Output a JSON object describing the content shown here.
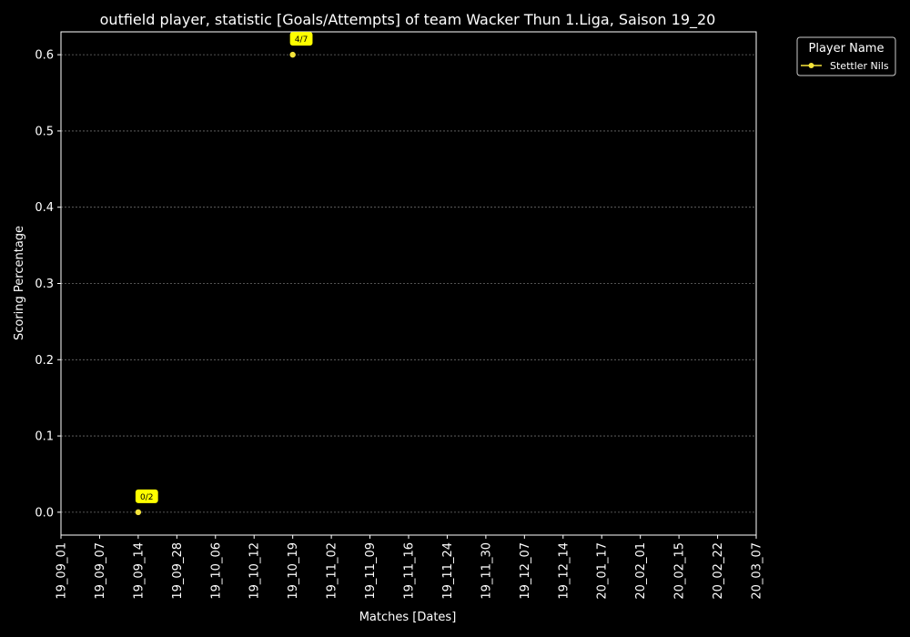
{
  "chart_data": {
    "type": "line",
    "title": "outfield player, statistic [Goals/Attempts] of team Wacker Thun 1.Liga, Saison 19_20",
    "xlabel": "Matches [Dates]",
    "ylabel": "Scoring Percentage",
    "categories": [
      "19_09_01",
      "19_09_07",
      "19_09_14",
      "19_09_28",
      "19_10_06",
      "19_10_12",
      "19_10_19",
      "19_11_02",
      "19_11_09",
      "19_11_16",
      "19_11_24",
      "19_11_30",
      "19_12_07",
      "19_12_14",
      "20_01_17",
      "20_02_01",
      "20_02_15",
      "20_02_22",
      "20_03_07"
    ],
    "ylim": [
      -0.03,
      0.63
    ],
    "yticks": [
      0.0,
      0.1,
      0.2,
      0.3,
      0.4,
      0.5,
      0.6
    ],
    "ytick_labels": [
      "0.0",
      "0.1",
      "0.2",
      "0.3",
      "0.4",
      "0.5",
      "0.6"
    ],
    "grid": true,
    "legend": {
      "title": "Player Name",
      "placement": "outside-top-right"
    },
    "series": [
      {
        "name": "Stettler Nils",
        "color": "#f5e43a",
        "points": [
          {
            "x": "19_09_14",
            "y": 0.0,
            "label": "0/2"
          },
          {
            "x": "19_10_19",
            "y": 0.6,
            "label": "4/7"
          }
        ]
      }
    ],
    "colors": {
      "background": "#000000",
      "axes": "#ffffff",
      "grid": "#6e6e6e",
      "annotation_fill": "#ffff00",
      "annotation_text": "#000000"
    }
  }
}
